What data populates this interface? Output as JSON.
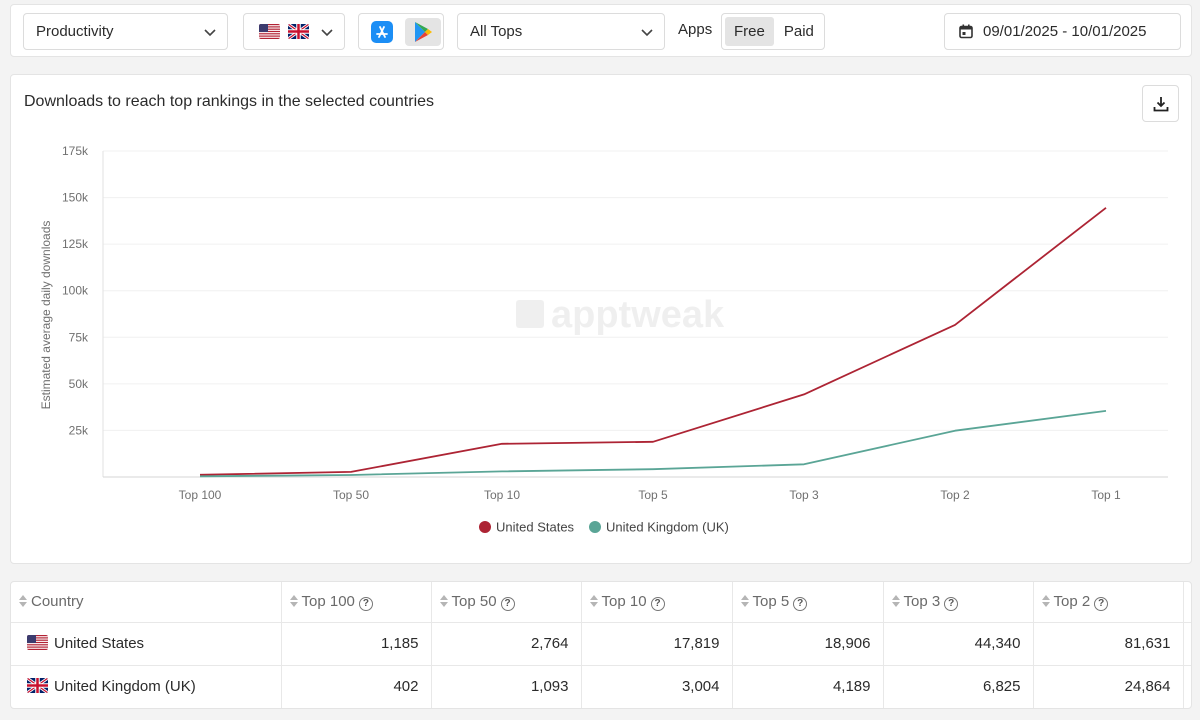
{
  "filters": {
    "category": "Productivity",
    "tops": "All Tops",
    "apps_label": "Apps",
    "price_free": "Free",
    "price_paid": "Paid",
    "date_range": "09/01/2025 - 10/01/2025"
  },
  "chart_card": {
    "title": "Downloads to reach top rankings in the selected countries",
    "watermark": "apptweak"
  },
  "chart_data": {
    "type": "line",
    "title": "Downloads to reach top rankings in the selected countries",
    "ylabel": "Estimated average daily downloads",
    "xlabel": "",
    "categories": [
      "Top 100",
      "Top 50",
      "Top 10",
      "Top 5",
      "Top 3",
      "Top 2",
      "Top 1"
    ],
    "y_ticks": [
      "25k",
      "50k",
      "75k",
      "100k",
      "125k",
      "150k",
      "175k"
    ],
    "y_tick_values": [
      25000,
      50000,
      75000,
      100000,
      125000,
      150000,
      175000
    ],
    "ylim": [
      0,
      175000
    ],
    "grid": true,
    "legend_position": "bottom",
    "series": [
      {
        "name": "United States",
        "color": "#ad2434",
        "values": [
          1185,
          2764,
          17819,
          18906,
          44340,
          81631,
          144500
        ]
      },
      {
        "name": "United Kingdom (UK)",
        "color": "#5aa596",
        "values": [
          402,
          1093,
          3004,
          4189,
          6825,
          24864,
          35500
        ]
      }
    ]
  },
  "table": {
    "columns": [
      "Country",
      "Top 100",
      "Top 50",
      "Top 10",
      "Top 5",
      "Top 3",
      "Top 2"
    ],
    "rows": [
      {
        "country": "United States",
        "values": [
          "1,185",
          "2,764",
          "17,819",
          "18,906",
          "44,340",
          "81,631"
        ]
      },
      {
        "country": "United Kingdom (UK)",
        "values": [
          "402",
          "1,093",
          "3,004",
          "4,189",
          "6,825",
          "24,864"
        ]
      }
    ]
  },
  "colors": {
    "us_line": "#ad2434",
    "uk_line": "#5aa596",
    "active_toggle_bg": "#e4e4e4"
  },
  "icons": [
    "chevron-down-icon",
    "us-flag-icon",
    "uk-flag-icon",
    "app-store-icon",
    "google-play-icon",
    "calendar-icon",
    "download-icon",
    "sort-icon",
    "help-icon"
  ]
}
